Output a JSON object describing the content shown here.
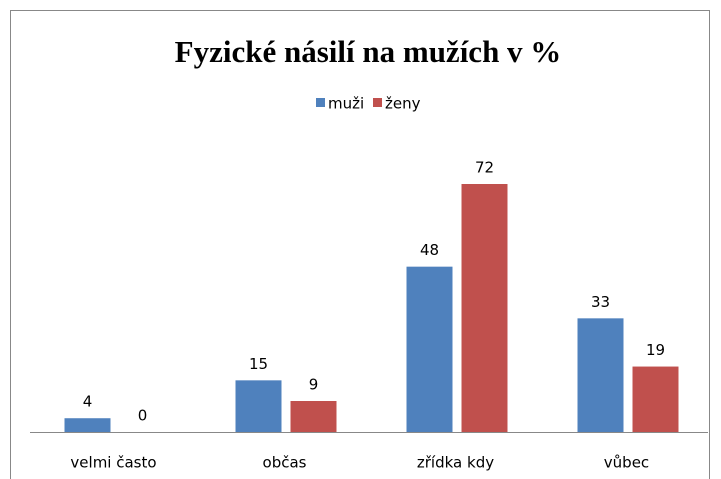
{
  "chart_data": {
    "type": "bar",
    "title": "Fyzické násilí na mužích v %",
    "categories": [
      "velmi často",
      "občas",
      "zřídka kdy",
      "vůbec"
    ],
    "series": [
      {
        "name": "muži",
        "color": "#4f81bd",
        "values": [
          4,
          15,
          48,
          33
        ]
      },
      {
        "name": "ženy",
        "color": "#c0504d",
        "values": [
          0,
          9,
          72,
          19
        ]
      }
    ],
    "legend": "top"
  }
}
